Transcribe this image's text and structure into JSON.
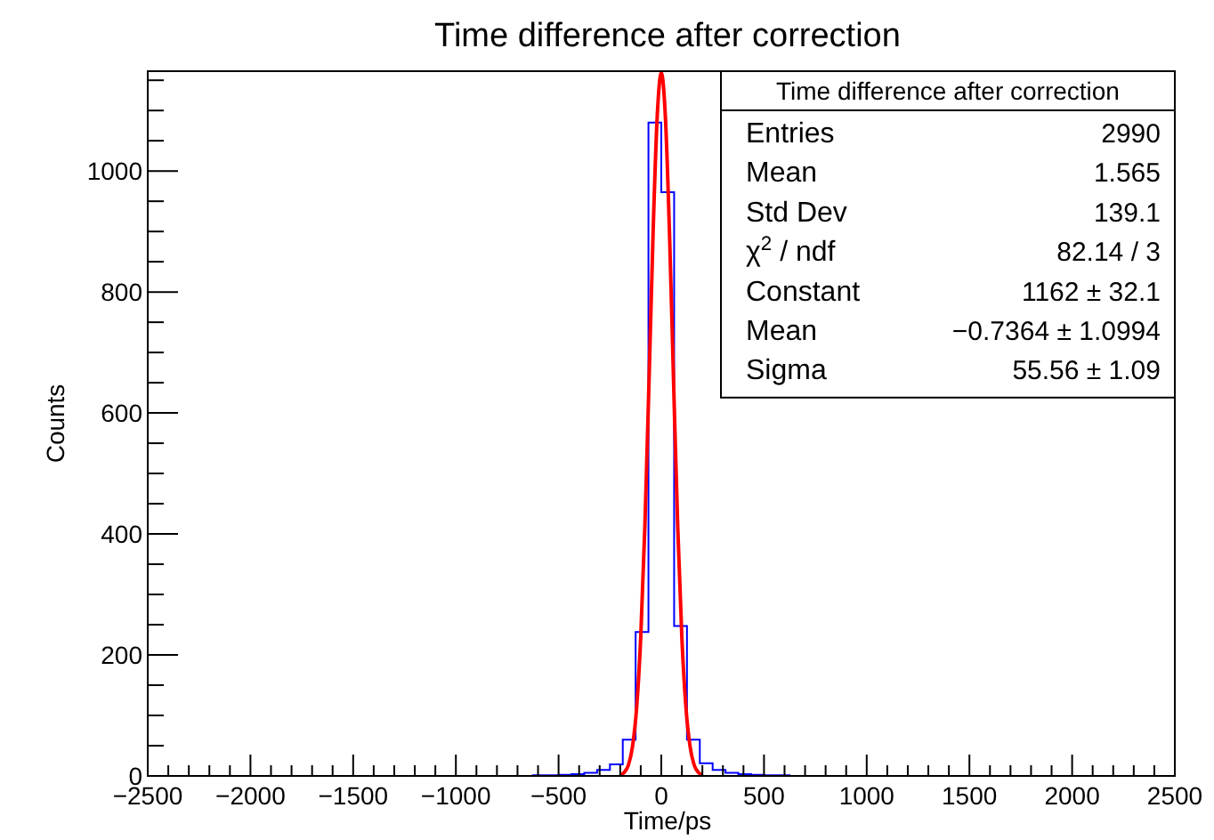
{
  "chart_data": {
    "type": "histogram",
    "title": "Time difference after correction",
    "xlabel": "Time/ps",
    "ylabel": "Counts",
    "bins": [
      -2500,
      -2437.5,
      -2375,
      -2312.5,
      -2250,
      -2187.5,
      -2125,
      -2062.5,
      -2000,
      -1937.5,
      -1875,
      -1812.5,
      -1750,
      -1687.5,
      -1625,
      -1562.5,
      -1500,
      -1437.5,
      -1375,
      -1312.5,
      -1250,
      -1187.5,
      -1125,
      -1062.5,
      -1000,
      -937.5,
      -875,
      -812.5,
      -750,
      -687.5,
      -625,
      -562.5,
      -500,
      -437.5,
      -375,
      -312.5,
      -250,
      -187.5,
      -125,
      -62.5,
      0,
      62.5,
      125,
      187.5,
      250,
      312.5,
      375,
      437.5,
      500,
      562.5,
      625,
      687.5,
      750,
      812.5,
      875,
      937.5,
      1000,
      1062.5,
      1125,
      1187.5,
      1250,
      1312.5,
      1375,
      1437.5,
      1500,
      1562.5,
      1625,
      1687.5,
      1750,
      1812.5,
      1875,
      1937.5,
      2000,
      2062.5,
      2125,
      2187.5,
      2250,
      2312.5,
      2375,
      2437.5,
      2500
    ],
    "values": [
      0,
      0,
      0,
      0,
      0,
      0,
      0,
      0,
      0,
      0,
      0,
      0,
      0,
      0,
      0,
      0,
      0,
      0,
      0,
      0,
      0,
      0,
      0,
      0,
      0,
      0,
      0,
      0,
      0,
      0,
      1,
      1,
      2,
      3,
      5,
      10,
      19,
      60,
      238,
      1080,
      965,
      248,
      60,
      21,
      10,
      5,
      3,
      2,
      1,
      1,
      0,
      0,
      0,
      0,
      0,
      0,
      0,
      0,
      0,
      0,
      0,
      0,
      0,
      0,
      0,
      0,
      0,
      0,
      0,
      0,
      0,
      0,
      0,
      0,
      0,
      0,
      0,
      0,
      0,
      0
    ],
    "color": "#0000ff",
    "series": [
      {
        "type": "line",
        "color": "#ff0000",
        "x": [
          -200,
          -180,
          -160,
          -140,
          -120,
          -100,
          -80,
          -60,
          -40,
          -20,
          0,
          20,
          40,
          60,
          80,
          100,
          120,
          140,
          160,
          180,
          200
        ],
        "values": [
          2,
          6,
          18,
          49,
          113,
          230,
          412,
          649,
          897,
          1089,
          1162,
          1089,
          897,
          649,
          412,
          230,
          113,
          49,
          18,
          6,
          2
        ]
      }
    ],
    "xlim": [
      -2500,
      2500
    ],
    "ylim": [
      0,
      1165
    ],
    "xticks": [
      -2500,
      {
        "value": -2400,
        "label": null
      },
      {
        "value": -2300,
        "label": null
      },
      {
        "value": -2200,
        "label": null
      },
      {
        "value": -2100,
        "label": null
      },
      -2000,
      {
        "value": -1900,
        "label": null
      },
      {
        "value": -1800,
        "label": null
      },
      {
        "value": -1700,
        "label": null
      },
      {
        "value": -1600,
        "label": null
      },
      -1500,
      {
        "value": -1400,
        "label": null
      },
      {
        "value": -1300,
        "label": null
      },
      {
        "value": -1200,
        "label": null
      },
      {
        "value": -1100,
        "label": null
      },
      -1000,
      {
        "value": -900,
        "label": null
      },
      {
        "value": -800,
        "label": null
      },
      {
        "value": -700,
        "label": null
      },
      {
        "value": -600,
        "label": null
      },
      -500,
      {
        "value": -400,
        "label": null
      },
      {
        "value": -300,
        "label": null
      },
      {
        "value": -200,
        "label": null
      },
      {
        "value": -100,
        "label": null
      },
      0,
      {
        "value": 100,
        "label": null
      },
      {
        "value": 200,
        "label": null
      },
      {
        "value": 300,
        "label": null
      },
      {
        "value": 400,
        "label": null
      },
      500,
      {
        "value": 600,
        "label": null
      },
      {
        "value": 700,
        "label": null
      },
      {
        "value": 800,
        "label": null
      },
      {
        "value": 900,
        "label": null
      },
      1000,
      {
        "value": 1100,
        "label": null
      },
      {
        "value": 1200,
        "label": null
      },
      {
        "value": 1300,
        "label": null
      },
      {
        "value": 1400,
        "label": null
      },
      1500,
      {
        "value": 1600,
        "label": null
      },
      {
        "value": 1700,
        "label": null
      },
      {
        "value": 1800,
        "label": null
      },
      {
        "value": 1900,
        "label": null
      },
      2000,
      {
        "value": 2100,
        "label": null
      },
      {
        "value": 2200,
        "label": null
      },
      {
        "value": 2300,
        "label": null
      },
      {
        "value": 2400,
        "label": null
      },
      2500
    ],
    "yticks": [
      0,
      {
        "value": 50,
        "label": null
      },
      {
        "value": 100,
        "label": null
      },
      {
        "value": 150,
        "label": null
      },
      200,
      {
        "value": 250,
        "label": null
      },
      {
        "value": 300,
        "label": null
      },
      {
        "value": 350,
        "label": null
      },
      400,
      {
        "value": 450,
        "label": null
      },
      {
        "value": 500,
        "label": null
      },
      {
        "value": 550,
        "label": null
      },
      600,
      {
        "value": 650,
        "label": null
      },
      {
        "value": 700,
        "label": null
      },
      {
        "value": 750,
        "label": null
      },
      800,
      {
        "value": 850,
        "label": null
      },
      {
        "value": 900,
        "label": null
      },
      {
        "value": 950,
        "label": null
      },
      1000,
      {
        "value": 1050,
        "label": null
      },
      {
        "value": 1100,
        "label": null
      },
      {
        "value": 1150,
        "label": null
      }
    ],
    "annotations": [
      "Time difference after correction",
      "Entries",
      "2990",
      "Mean",
      "1.565",
      "Std Dev",
      "139.1",
      "χ$^{2}$ / ndf",
      "82.14 / 3",
      "Constant",
      "1162 ± 32.1",
      "Mean",
      "−0.7364 ± 1.0994",
      "Sigma",
      "55.56 ± 1.09"
    ]
  }
}
